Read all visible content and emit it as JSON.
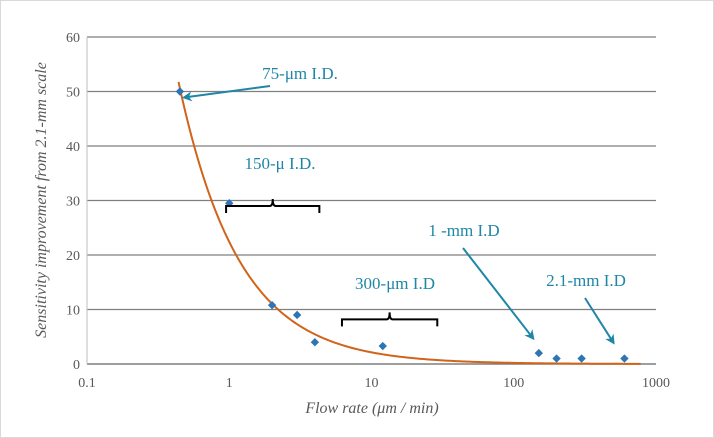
{
  "chart_data": {
    "type": "scatter",
    "xlabel": "Flow rate (μm / min)",
    "ylabel": "Sensitivity improvement from 2.1-mm scale",
    "xscale": "log",
    "xlim": [
      0.1,
      1000
    ],
    "ylim": [
      0,
      60
    ],
    "x_ticks": [
      "0.1",
      "1",
      "10",
      "100",
      "1000"
    ],
    "y_ticks": [
      "0",
      "10",
      "20",
      "30",
      "40",
      "50",
      "60"
    ],
    "grid": "horizontal",
    "points": [
      {
        "x": 0.45,
        "y": 50
      },
      {
        "x": 1.0,
        "y": 29.5
      },
      {
        "x": 2.0,
        "y": 10.8
      },
      {
        "x": 3.0,
        "y": 9
      },
      {
        "x": 4.0,
        "y": 4
      },
      {
        "x": 12,
        "y": 3.3
      },
      {
        "x": 150,
        "y": 2
      },
      {
        "x": 200,
        "y": 1
      },
      {
        "x": 300,
        "y": 1
      },
      {
        "x": 600,
        "y": 1
      }
    ],
    "trendline": {
      "type": "power",
      "a": 22.4,
      "b": -1.02,
      "x_range": [
        0.44,
        780
      ]
    },
    "colors": {
      "points": "#2e75b6",
      "trendline": "#d0641a",
      "annotations": "#1f86a6",
      "grid": "#7f7f7f"
    },
    "annotations": [
      {
        "label": "75-μm I.D.",
        "target_x": 0.45,
        "target_y": 50
      },
      {
        "label": "150-μ I.D.",
        "bracket_x": [
          0.95,
          4.3
        ],
        "bracket_y": 31
      },
      {
        "label": "300-μm I.D",
        "bracket_x": [
          6.2,
          29
        ],
        "bracket_y": 8
      },
      {
        "label": "1 -mm I.D",
        "target_x": 135,
        "target_y": 4.3
      },
      {
        "label": "2.1-mm I.D",
        "target_x": 520,
        "target_y": 3.5
      }
    ]
  }
}
